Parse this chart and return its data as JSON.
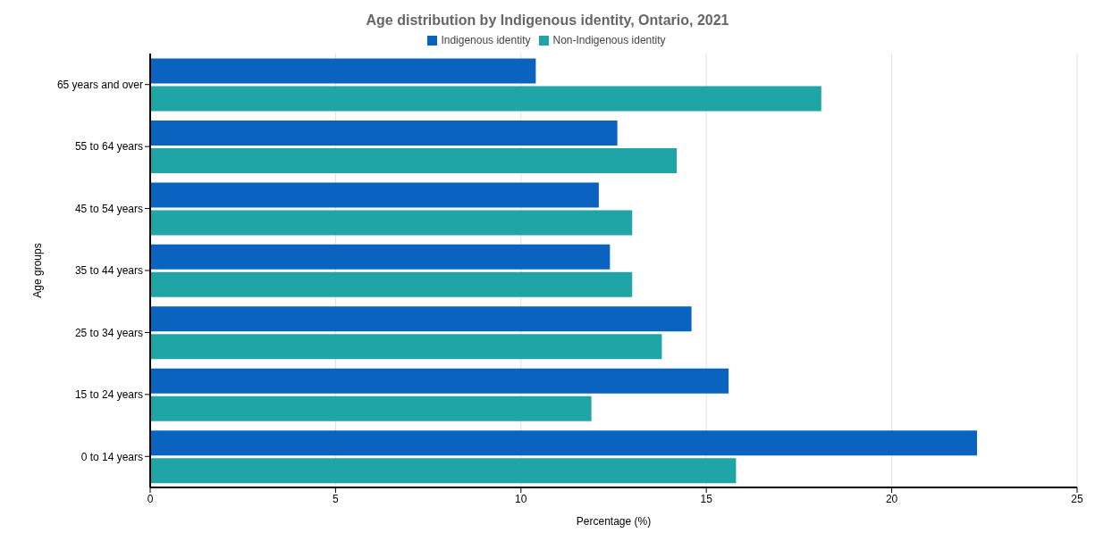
{
  "chart_data": {
    "type": "bar",
    "orientation": "horizontal",
    "title": "Age distribution by Indigenous identity, Ontario, 2021",
    "xlabel": "Percentage (%)",
    "ylabel": "Age groups",
    "categories": [
      "65 years and over",
      "55 to 64 years",
      "45 to 54 years",
      "35 to 44 years",
      "25 to 34 years",
      "15 to 24 years",
      "0 to 14 years"
    ],
    "series": [
      {
        "name": "Indigenous identity",
        "color": "#0a64bf",
        "values": [
          10.4,
          12.6,
          12.1,
          12.4,
          14.6,
          15.6,
          22.3
        ]
      },
      {
        "name": "Non-Indigenous identity",
        "color": "#1fa5a5",
        "values": [
          18.1,
          14.2,
          13.0,
          13.0,
          13.8,
          11.9,
          15.8
        ]
      }
    ],
    "xlim": [
      0,
      25
    ],
    "xticks": [
      0,
      5,
      10,
      15,
      20,
      25
    ],
    "grid": "x",
    "legend": "top"
  }
}
